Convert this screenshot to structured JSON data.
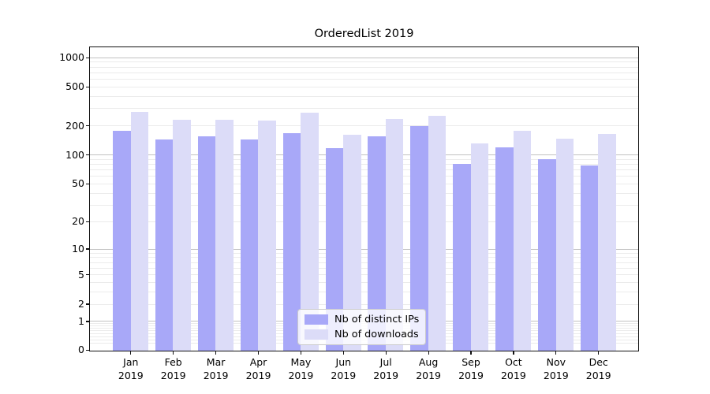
{
  "chart_data": {
    "type": "bar",
    "title": "OrderedList 2019",
    "categories": [
      "Jan 2019",
      "Feb 2019",
      "Mar 2019",
      "Apr 2019",
      "May 2019",
      "Jun 2019",
      "Jul 2019",
      "Aug 2019",
      "Sep 2019",
      "Oct 2019",
      "Nov 2019",
      "Dec 2019"
    ],
    "series": [
      {
        "name": "Nb of distinct IPs",
        "color": "#a8a8f8",
        "values": [
          178,
          146,
          159,
          146,
          169,
          119,
          158,
          200,
          82,
          122,
          91,
          79
        ]
      },
      {
        "name": "Nb of downloads",
        "color": "#dcdcf8",
        "values": [
          282,
          232,
          234,
          227,
          276,
          164,
          237,
          257,
          133,
          181,
          148,
          166
        ]
      }
    ],
    "xlabel": "",
    "ylabel": "",
    "y_scale": "symlog",
    "y_ticks": [
      0,
      1,
      2,
      5,
      10,
      20,
      50,
      100,
      200,
      500,
      1000
    ],
    "ylim": [
      0,
      1285
    ],
    "grid": true,
    "legend_position": "lower-center",
    "colors": {
      "grid_major": "#c2c2c2",
      "grid_minor": "#ebebeb",
      "axis": "#111111",
      "legend_border": "#cbcbcb"
    }
  }
}
